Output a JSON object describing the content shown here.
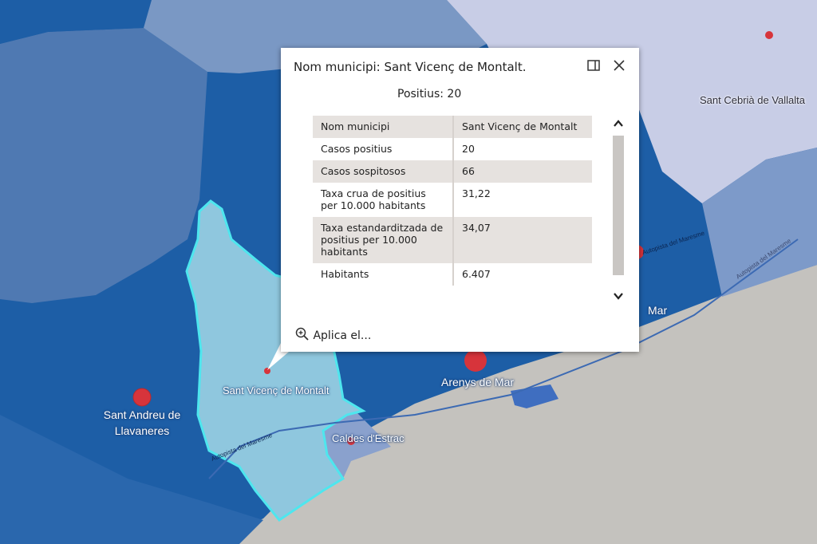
{
  "popup": {
    "title": "Nom municipi: Sant Vicenç de Montalt.",
    "subtitle": "Positius: 20",
    "zoom_link": "Aplica el...",
    "rows": [
      {
        "key": "Nom municipi",
        "value": "Sant Vicenç de Montalt"
      },
      {
        "key": "Casos positius",
        "value": "20"
      },
      {
        "key": "Casos sospitosos",
        "value": "66"
      },
      {
        "key": "Taxa crua de positius per 10.000 habitants",
        "value": "31,22"
      },
      {
        "key": "Taxa estandarditzada de positius per 10.000 habitants",
        "value": "34,07"
      },
      {
        "key": "Habitants",
        "value": "6.407"
      }
    ]
  },
  "map": {
    "labels": {
      "sant_vicenc": "Sant Vicenç de Montalt",
      "sant_andreu_1": "Sant Andreu de",
      "sant_andreu_2": "Llavaneres",
      "arenys": "Arenys de Mar",
      "caldes": "Caldes d'Estrac",
      "sant_cebria": "Sant Cebrià de Vallalta",
      "mar_fragment": "Mar",
      "autopista_1": "Autopista del Maresme",
      "autopista_2": "Autopista del Maresme",
      "autopista_3": "Autopista del Maresme"
    },
    "colors": {
      "sea": "#c4c2be",
      "dark_blue": "#1d5ea6",
      "mid_blue": "#7a98c4",
      "light_blue": "#b9c4e0",
      "selected_fill": "#8fc7de",
      "selected_outline": "#4ee6ee",
      "marker": "#d7343b"
    }
  }
}
